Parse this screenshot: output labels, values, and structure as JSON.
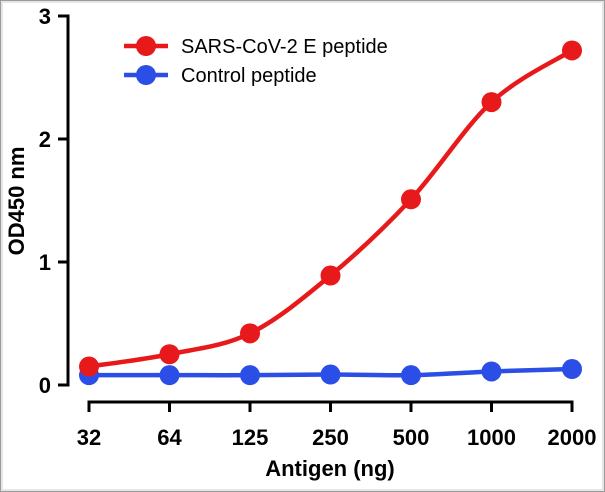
{
  "chart_data": {
    "type": "line",
    "categories": [
      "32",
      "64",
      "125",
      "250",
      "500",
      "1000",
      "2000"
    ],
    "xlabel": "Antigen (ng)",
    "ylabel": "OD450 nm",
    "ylim": [
      0,
      3
    ],
    "yticks": [
      "0",
      "1",
      "2",
      "3"
    ],
    "x_scale": "log",
    "grid": false,
    "legend_position": "top-left",
    "series": [
      {
        "name": "SARS-CoV-2 E peptide",
        "color": "#e8191b",
        "values": [
          0.15,
          0.25,
          0.42,
          0.89,
          1.51,
          2.3,
          2.72
        ]
      },
      {
        "name": "Control peptide",
        "color": "#2b4fe6",
        "values": [
          0.08,
          0.08,
          0.08,
          0.085,
          0.08,
          0.11,
          0.13
        ]
      }
    ]
  }
}
